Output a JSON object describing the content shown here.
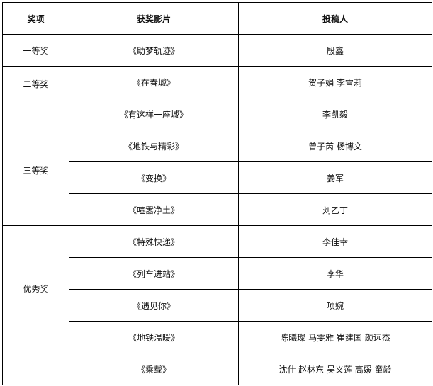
{
  "headers": {
    "award": "奖项",
    "film": "获奖影片",
    "author": "投稿人"
  },
  "groups": [
    {
      "award": "一等奖",
      "entries": [
        {
          "film": "《助梦轨迹》",
          "author": "殷鑫"
        }
      ]
    },
    {
      "award": "二等奖",
      "entries": [
        {
          "film": "《在春城》",
          "author": "贺子娟 李雪莉"
        },
        {
          "film": "《有这样一座城》",
          "author": "李凯毅"
        }
      ]
    },
    {
      "award": "三等奖",
      "entries": [
        {
          "film": "《地铁与精彩》",
          "author": "曾子芮 杨博文"
        },
        {
          "film": "《变换》",
          "author": "姜军"
        },
        {
          "film": "《喧嚣净土》",
          "author": "刘乙丁"
        }
      ]
    },
    {
      "award": "优秀奖",
      "entries": [
        {
          "film": "《特殊快递》",
          "author": "李佳幸"
        },
        {
          "film": "《列车进站》",
          "author": "李华"
        },
        {
          "film": "《遇见你》",
          "author": "项婉"
        },
        {
          "film": "《地铁温暖》",
          "author": "陈曦璨 马雯雅 崔建国 颜远杰"
        },
        {
          "film": "《乘载》",
          "author": "沈仕 赵林东 吴义莲 高媛 童龄"
        }
      ]
    }
  ]
}
